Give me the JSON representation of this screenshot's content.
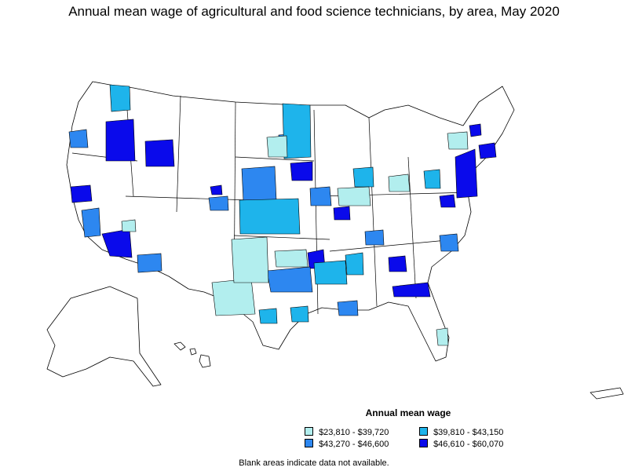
{
  "title": "Annual mean wage of agricultural and food science technicians, by area, May 2020",
  "legend": {
    "title": "Annual mean wage",
    "items": [
      {
        "label": "$23,810 - $39,720",
        "color": "#b2eeee"
      },
      {
        "label": "$39,810 - $43,150",
        "color": "#1eb4eb"
      },
      {
        "label": "$43,270 - $46,600",
        "color": "#2d87f0"
      },
      {
        "label": "$46,610 - $60,070",
        "color": "#0a0aeb"
      }
    ]
  },
  "note": "Blank areas indicate data not available."
}
